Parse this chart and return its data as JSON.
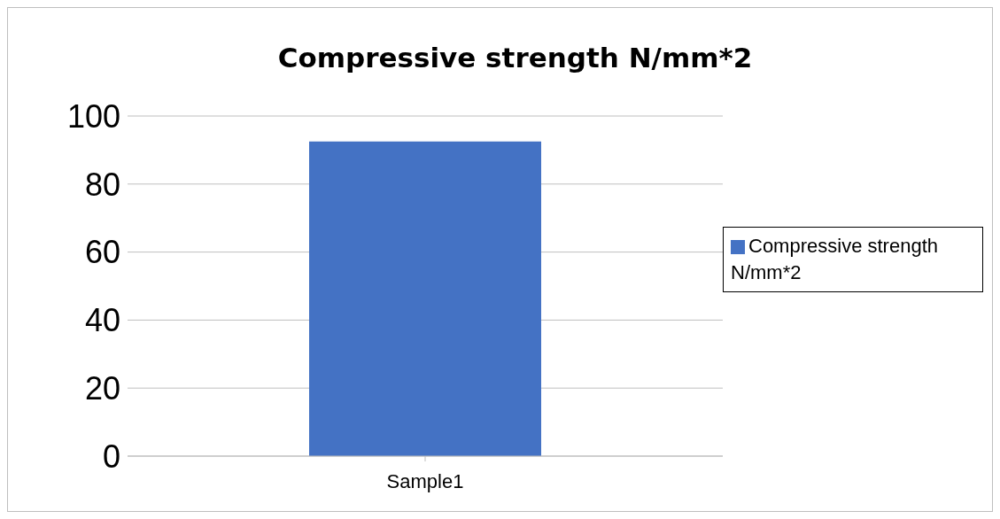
{
  "chart_data": {
    "type": "bar",
    "title": "Compressive strength N/mm*2",
    "categories": [
      "Sample1"
    ],
    "series": [
      {
        "name": "Compressive strength N/mm*2",
        "color": "#4472c4",
        "values": [
          92.5
        ]
      }
    ],
    "ylim": [
      0,
      100
    ],
    "yticks": [
      0,
      20,
      40,
      60,
      80,
      100
    ],
    "grid": "y",
    "legend": "right"
  }
}
